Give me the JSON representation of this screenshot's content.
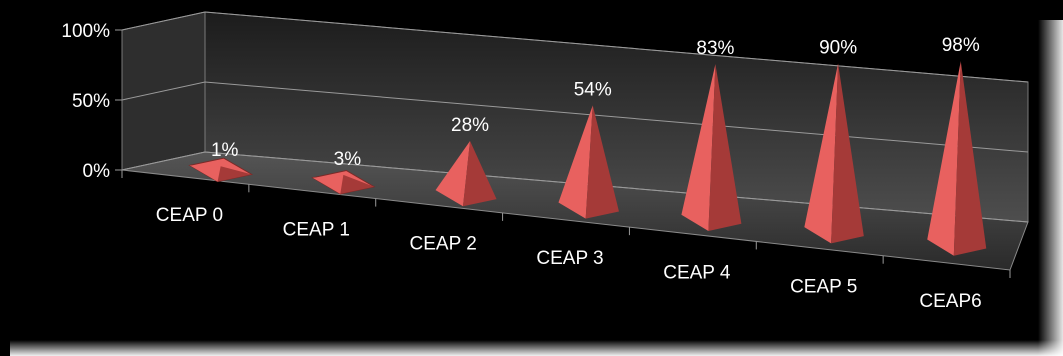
{
  "chart_data": {
    "type": "bar",
    "categories": [
      "CEAP 0",
      "CEAP 1",
      "CEAP 2",
      "CEAP 3",
      "CEAP 4",
      "CEAP 5",
      "CEAP6"
    ],
    "values": [
      1,
      3,
      28,
      54,
      83,
      90,
      98
    ],
    "data_labels": [
      "1%",
      "3%",
      "28%",
      "54%",
      "83%",
      "90%",
      "98%"
    ],
    "y_ticks": [
      "0%",
      "50%",
      "100%"
    ],
    "ylim": [
      0,
      100
    ],
    "shape": "3d-pyramid",
    "grid": true,
    "colors": {
      "background": "#000000",
      "pyramid_light": "#e8615f",
      "pyramid_dark": "#a53a38",
      "grid": "#9a9a9a",
      "wall": "#4a4a4a",
      "floor": "#3a3a3a",
      "text": "#ffffff"
    }
  }
}
